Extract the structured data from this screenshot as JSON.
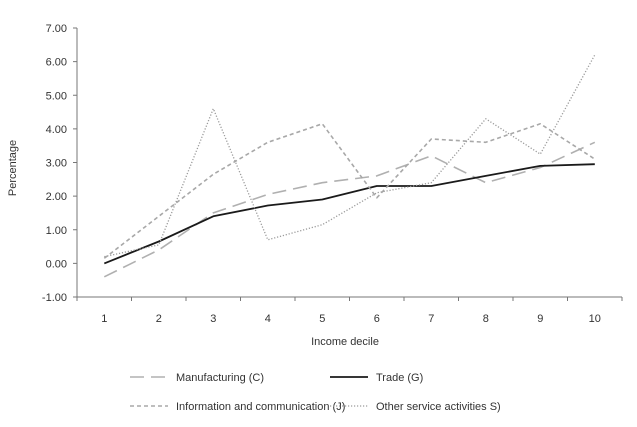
{
  "chart_data": {
    "type": "line",
    "xlabel": "Income decile",
    "ylabel": "Percentage",
    "x": [
      1,
      2,
      3,
      4,
      5,
      6,
      7,
      8,
      9,
      10
    ],
    "x_tick_labels": [
      "1",
      "2",
      "3",
      "4",
      "5",
      "6",
      "7",
      "8",
      "9",
      "10"
    ],
    "ylim": [
      -1.0,
      7.0
    ],
    "y_ticks": [
      -1.0,
      0.0,
      1.0,
      2.0,
      3.0,
      4.0,
      5.0,
      6.0,
      7.0
    ],
    "y_tick_labels": [
      "-1.00",
      "0.00",
      "1.00",
      "2.00",
      "3.00",
      "4.00",
      "5.00",
      "6.00",
      "7.00"
    ],
    "grid": false,
    "legend_position": "bottom",
    "series": [
      {
        "name": "Manufacturing (C)",
        "style": "long-dash",
        "color": "#b0b0b0",
        "values": [
          -0.4,
          0.4,
          1.5,
          2.05,
          2.4,
          2.6,
          3.2,
          2.4,
          2.85,
          3.6
        ]
      },
      {
        "name": "Trade (G)",
        "style": "solid",
        "color": "#1a1a1a",
        "values": [
          0.0,
          0.65,
          1.4,
          1.72,
          1.9,
          2.3,
          2.3,
          2.6,
          2.9,
          2.95
        ]
      },
      {
        "name": "Information and communication (J)",
        "style": "short-dash",
        "color": "#a8a8a8",
        "values": [
          0.15,
          1.4,
          2.65,
          3.6,
          4.15,
          1.95,
          3.7,
          3.6,
          4.15,
          3.1
        ]
      },
      {
        "name": "Other service activities S)",
        "style": "dotted",
        "color": "#9a9a9a",
        "values": [
          0.2,
          0.55,
          4.6,
          0.7,
          1.15,
          2.1,
          2.4,
          4.3,
          3.25,
          6.2
        ]
      }
    ]
  }
}
